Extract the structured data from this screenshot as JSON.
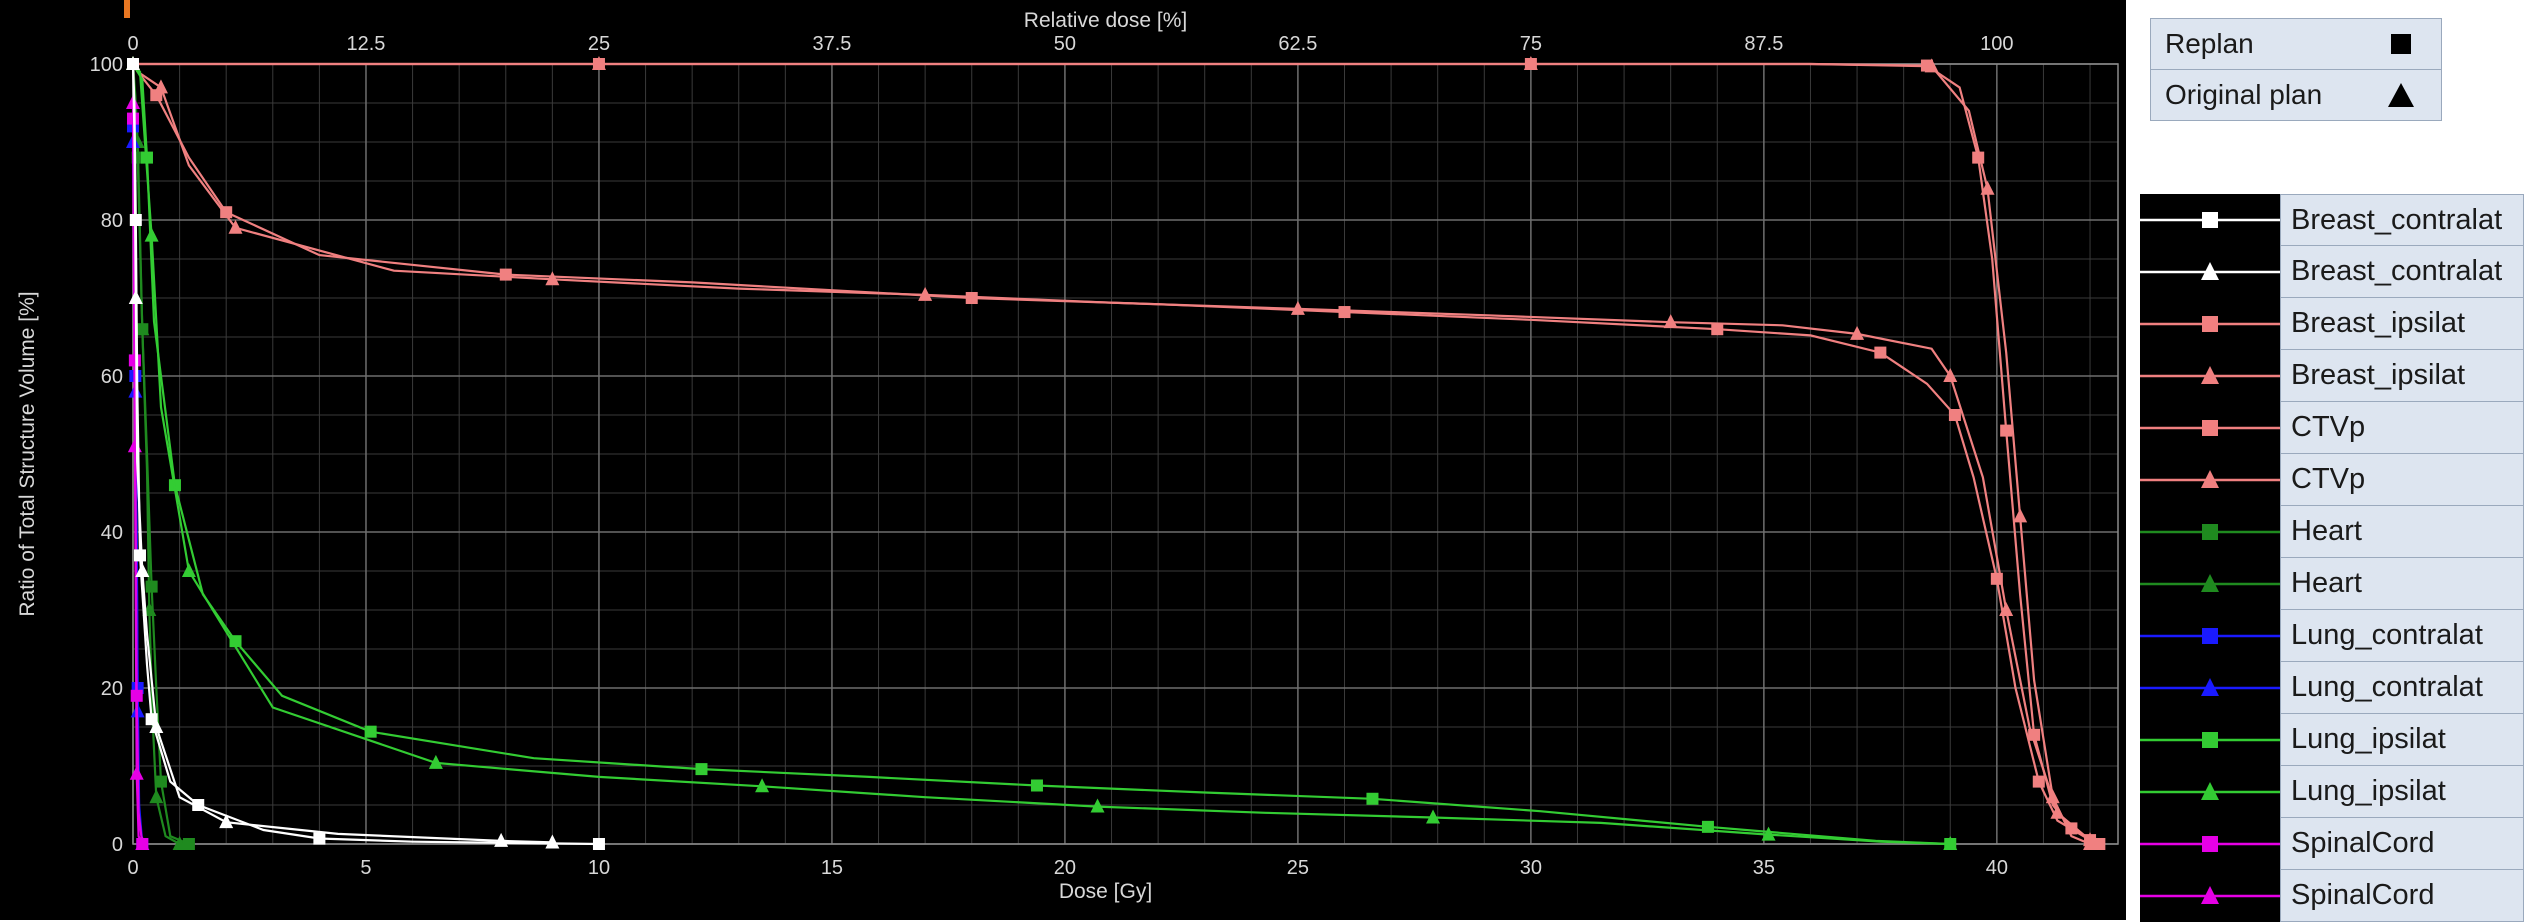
{
  "marker_legend": [
    {
      "label": "Replan",
      "symbol": "square"
    },
    {
      "label": "Original plan",
      "symbol": "triangle"
    }
  ],
  "structure_legend": [
    {
      "label": "Breast_contralat",
      "color": "#ffffff",
      "symbol": "square"
    },
    {
      "label": "Breast_contralat",
      "color": "#ffffff",
      "symbol": "triangle"
    },
    {
      "label": "Breast_ipsilat",
      "color": "#f08080",
      "symbol": "square"
    },
    {
      "label": "Breast_ipsilat",
      "color": "#f08080",
      "symbol": "triangle"
    },
    {
      "label": "CTVp",
      "color": "#f08080",
      "symbol": "square"
    },
    {
      "label": "CTVp",
      "color": "#f08080",
      "symbol": "triangle"
    },
    {
      "label": "Heart",
      "color": "#1f8a1f",
      "symbol": "square"
    },
    {
      "label": "Heart",
      "color": "#1f8a1f",
      "symbol": "triangle"
    },
    {
      "label": "Lung_contralat",
      "color": "#1a1aff",
      "symbol": "square"
    },
    {
      "label": "Lung_contralat",
      "color": "#1a1aff",
      "symbol": "triangle"
    },
    {
      "label": "Lung_ipsilat",
      "color": "#33cc33",
      "symbol": "square"
    },
    {
      "label": "Lung_ipsilat",
      "color": "#33cc33",
      "symbol": "triangle"
    },
    {
      "label": "SpinalCord",
      "color": "#e600e6",
      "symbol": "square"
    },
    {
      "label": "SpinalCord",
      "color": "#e600e6",
      "symbol": "triangle"
    }
  ],
  "chart_data": {
    "type": "line",
    "xlabel": "Dose [Gy]",
    "ylabel": "Ratio of Total Structure Volume [%]",
    "top_xlabel": "Relative dose [%]",
    "xlim": [
      0,
      42.6
    ],
    "ylim": [
      0,
      100
    ],
    "top_xlim": [
      0,
      106.5
    ],
    "x_ticks": [
      0,
      5,
      10,
      15,
      20,
      25,
      30,
      35,
      40
    ],
    "top_ticks": [
      "0",
      "12.5",
      "25",
      "37.5",
      "50",
      "62.5",
      "75",
      "87.5",
      "100"
    ],
    "y_ticks": [
      0,
      20,
      40,
      60,
      80,
      100
    ],
    "grid": true,
    "series": [
      {
        "name": "Breast_ipsilat",
        "color": "#f08080",
        "marker": "square",
        "points": [
          [
            0,
            100
          ],
          [
            2,
            100
          ],
          [
            10,
            100
          ],
          [
            20,
            100
          ],
          [
            30,
            100
          ],
          [
            36,
            100
          ],
          [
            38.5,
            99.8
          ],
          [
            39.2,
            97
          ],
          [
            39.6,
            88
          ],
          [
            39.9,
            75
          ],
          [
            40.2,
            53
          ],
          [
            40.5,
            32
          ],
          [
            40.8,
            14
          ],
          [
            41.2,
            5
          ],
          [
            41.6,
            2
          ],
          [
            42.2,
            0
          ]
        ]
      },
      {
        "name": "Breast_ipsilat",
        "color": "#f08080",
        "marker": "triangle",
        "points": [
          [
            0,
            100
          ],
          [
            2,
            100
          ],
          [
            10,
            100
          ],
          [
            20,
            100
          ],
          [
            30,
            100
          ],
          [
            36,
            100
          ],
          [
            38.6,
            99.7
          ],
          [
            39.4,
            94
          ],
          [
            39.8,
            84
          ],
          [
            40.2,
            63
          ],
          [
            40.5,
            42
          ],
          [
            40.8,
            21
          ],
          [
            41.2,
            6
          ],
          [
            41.6,
            1
          ],
          [
            42,
            0
          ]
        ]
      },
      {
        "name": "CTVp",
        "color": "#f08080",
        "marker": "square",
        "points": [
          [
            0,
            100
          ],
          [
            0.1,
            99
          ],
          [
            0.5,
            96
          ],
          [
            1.2,
            88
          ],
          [
            2,
            81
          ],
          [
            4,
            75.5
          ],
          [
            8,
            73
          ],
          [
            12,
            72
          ],
          [
            18,
            70
          ],
          [
            22,
            69.2
          ],
          [
            26,
            68.2
          ],
          [
            30,
            67.2
          ],
          [
            34,
            66
          ],
          [
            36,
            65.2
          ],
          [
            37.5,
            63
          ],
          [
            38.5,
            59
          ],
          [
            39.1,
            55
          ],
          [
            39.5,
            47
          ],
          [
            40,
            34
          ],
          [
            40.4,
            20
          ],
          [
            40.9,
            8
          ],
          [
            41.3,
            3
          ],
          [
            42,
            0.5
          ]
        ]
      },
      {
        "name": "CTVp",
        "color": "#f08080",
        "marker": "triangle",
        "points": [
          [
            0,
            100
          ],
          [
            0.1,
            99
          ],
          [
            0.6,
            97
          ],
          [
            1.2,
            87
          ],
          [
            2.2,
            79
          ],
          [
            5.6,
            73.5
          ],
          [
            9,
            72.4
          ],
          [
            13,
            71.2
          ],
          [
            17,
            70.4
          ],
          [
            21,
            69.4
          ],
          [
            25,
            68.6
          ],
          [
            29,
            67.8
          ],
          [
            33,
            66.9
          ],
          [
            35.4,
            66.5
          ],
          [
            37,
            65.4
          ],
          [
            38.6,
            63.5
          ],
          [
            39,
            60
          ],
          [
            39.7,
            47
          ],
          [
            40.2,
            30
          ],
          [
            40.7,
            15
          ],
          [
            41.3,
            4
          ],
          [
            42,
            0.5
          ]
        ]
      },
      {
        "name": "Heart",
        "color": "#1f8a1f",
        "marker": "square",
        "points": [
          [
            0,
            100
          ],
          [
            0.05,
            95
          ],
          [
            0.1,
            88
          ],
          [
            0.15,
            77
          ],
          [
            0.2,
            66
          ],
          [
            0.3,
            50
          ],
          [
            0.4,
            33
          ],
          [
            0.5,
            20
          ],
          [
            0.6,
            8
          ],
          [
            0.8,
            1
          ],
          [
            1.2,
            0
          ]
        ]
      },
      {
        "name": "Heart",
        "color": "#1f8a1f",
        "marker": "triangle",
        "points": [
          [
            0,
            100
          ],
          [
            0.05,
            96
          ],
          [
            0.1,
            90
          ],
          [
            0.15,
            78
          ],
          [
            0.2,
            66
          ],
          [
            0.3,
            48
          ],
          [
            0.35,
            30
          ],
          [
            0.42,
            16
          ],
          [
            0.5,
            6
          ],
          [
            0.7,
            1
          ],
          [
            1,
            0
          ]
        ]
      },
      {
        "name": "Lung_contralat",
        "color": "#1a1aff",
        "marker": "square",
        "points": [
          [
            0,
            92
          ],
          [
            0.02,
            80
          ],
          [
            0.05,
            60
          ],
          [
            0.08,
            40
          ],
          [
            0.1,
            20
          ],
          [
            0.13,
            5
          ],
          [
            0.2,
            0
          ]
        ]
      },
      {
        "name": "Lung_contralat",
        "color": "#1a1aff",
        "marker": "triangle",
        "points": [
          [
            0,
            90
          ],
          [
            0.02,
            78
          ],
          [
            0.05,
            58
          ],
          [
            0.08,
            37
          ],
          [
            0.1,
            17
          ],
          [
            0.13,
            4
          ],
          [
            0.2,
            0
          ]
        ]
      },
      {
        "name": "Lung_ipsilat",
        "color": "#33cc33",
        "marker": "square",
        "points": [
          [
            0,
            100
          ],
          [
            0.2,
            98
          ],
          [
            0.3,
            88
          ],
          [
            0.45,
            67
          ],
          [
            0.9,
            46
          ],
          [
            1.5,
            32
          ],
          [
            2.2,
            26
          ],
          [
            3.2,
            19
          ],
          [
            5.1,
            14.4
          ],
          [
            8.6,
            11
          ],
          [
            12.2,
            9.6
          ],
          [
            15.8,
            8.6
          ],
          [
            19.4,
            7.5
          ],
          [
            23,
            6.6
          ],
          [
            26.6,
            5.8
          ],
          [
            30.2,
            4.2
          ],
          [
            33.8,
            2.2
          ],
          [
            37.4,
            0.4
          ],
          [
            39,
            0
          ]
        ]
      },
      {
        "name": "Lung_ipsilat",
        "color": "#33cc33",
        "marker": "triangle",
        "points": [
          [
            0,
            100
          ],
          [
            0.15,
            99
          ],
          [
            0.4,
            78
          ],
          [
            0.6,
            56
          ],
          [
            1.2,
            35
          ],
          [
            3,
            17.5
          ],
          [
            6.5,
            10.4
          ],
          [
            10,
            8.6
          ],
          [
            13.5,
            7.4
          ],
          [
            17,
            6
          ],
          [
            20.7,
            4.8
          ],
          [
            24.3,
            4
          ],
          [
            27.9,
            3.4
          ],
          [
            31.5,
            2.7
          ],
          [
            35.1,
            1.2
          ],
          [
            37.5,
            0.3
          ],
          [
            39,
            0
          ]
        ]
      },
      {
        "name": "SpinalCord",
        "color": "#e600e6",
        "marker": "square",
        "points": [
          [
            0,
            93
          ],
          [
            0.02,
            83
          ],
          [
            0.04,
            62
          ],
          [
            0.06,
            40
          ],
          [
            0.08,
            19
          ],
          [
            0.12,
            4
          ],
          [
            0.2,
            0
          ]
        ]
      },
      {
        "name": "SpinalCord",
        "color": "#e600e6",
        "marker": "triangle",
        "points": [
          [
            0,
            95
          ],
          [
            0.02,
            72
          ],
          [
            0.04,
            51
          ],
          [
            0.06,
            30
          ],
          [
            0.08,
            9
          ],
          [
            0.12,
            1
          ],
          [
            0.2,
            0
          ]
        ]
      },
      {
        "name": "Breast_contralat",
        "color": "#ffffff",
        "marker": "square",
        "points": [
          [
            0,
            100
          ],
          [
            0.03,
            95
          ],
          [
            0.06,
            80
          ],
          [
            0.09,
            59
          ],
          [
            0.15,
            37
          ],
          [
            0.3,
            23
          ],
          [
            0.4,
            16
          ],
          [
            0.8,
            8
          ],
          [
            1.4,
            5
          ],
          [
            2.8,
            1.8
          ],
          [
            4,
            0.7
          ],
          [
            6,
            0.3
          ],
          [
            10,
            0
          ]
        ]
      },
      {
        "name": "Breast_contralat",
        "color": "#ffffff",
        "marker": "triangle",
        "points": [
          [
            0,
            100
          ],
          [
            0.03,
            91
          ],
          [
            0.06,
            70
          ],
          [
            0.09,
            49
          ],
          [
            0.2,
            35
          ],
          [
            0.3,
            27
          ],
          [
            0.5,
            15
          ],
          [
            1,
            6
          ],
          [
            2,
            2.8
          ],
          [
            4.4,
            1.3
          ],
          [
            7.9,
            0.4
          ],
          [
            9,
            0.2
          ]
        ]
      }
    ]
  }
}
